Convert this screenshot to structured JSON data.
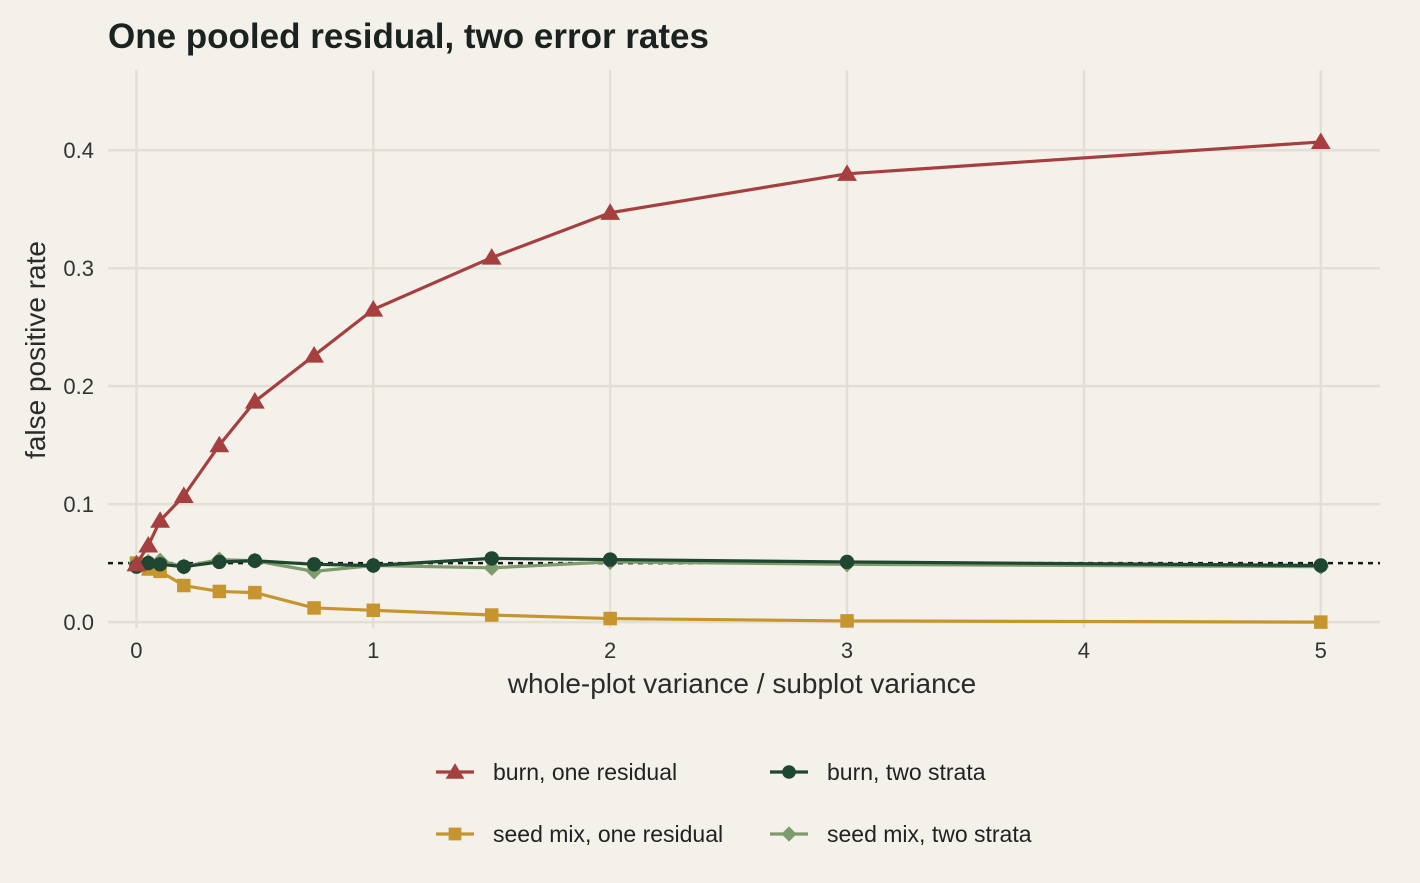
{
  "chart_data": {
    "type": "line",
    "title": "One pooled residual, two error rates",
    "xlabel": "whole-plot variance / subplot variance",
    "ylabel": "false positive rate",
    "xlim": [
      -0.12,
      5.25
    ],
    "ylim": [
      -0.005,
      0.468
    ],
    "xticks": [
      0,
      1,
      2,
      3,
      4,
      5
    ],
    "yticks": [
      0.0,
      0.1,
      0.2,
      0.3,
      0.4
    ],
    "xtick_labels": [
      "0",
      "1",
      "2",
      "3",
      "4",
      "5"
    ],
    "ytick_labels": [
      "0.0",
      "0.1",
      "0.2",
      "0.3",
      "0.4"
    ],
    "reference_line": {
      "y": 0.05,
      "style": "dotted",
      "color": "#1a1a1a"
    },
    "grid": true,
    "legend_position": "bottom",
    "x": [
      0,
      0.05,
      0.1,
      0.2,
      0.35,
      0.5,
      0.75,
      1,
      1.5,
      2,
      3,
      5
    ],
    "series": [
      {
        "name": "burn, one residual",
        "color": "#a63f3f",
        "marker": "triangle",
        "values": [
          0.049,
          0.065,
          0.086,
          0.107,
          0.15,
          0.187,
          0.226,
          0.265,
          0.309,
          0.347,
          0.38,
          0.407
        ]
      },
      {
        "name": "burn, two strata",
        "color": "#1f4630",
        "marker": "circle",
        "values": [
          0.047,
          0.05,
          0.049,
          0.047,
          0.051,
          0.052,
          0.049,
          0.048,
          0.054,
          0.053,
          0.051,
          0.048
        ]
      },
      {
        "name": "seed mix, one residual",
        "color": "#c7952f",
        "marker": "square",
        "values": [
          0.05,
          0.045,
          0.043,
          0.031,
          0.026,
          0.025,
          0.012,
          0.01,
          0.006,
          0.003,
          0.001,
          0.0
        ]
      },
      {
        "name": "seed mix, two strata",
        "color": "#7e9b6c",
        "marker": "diamond",
        "values": [
          0.05,
          0.051,
          0.052,
          0.047,
          0.053,
          0.052,
          0.043,
          0.048,
          0.046,
          0.051,
          0.049,
          0.047
        ]
      }
    ]
  }
}
